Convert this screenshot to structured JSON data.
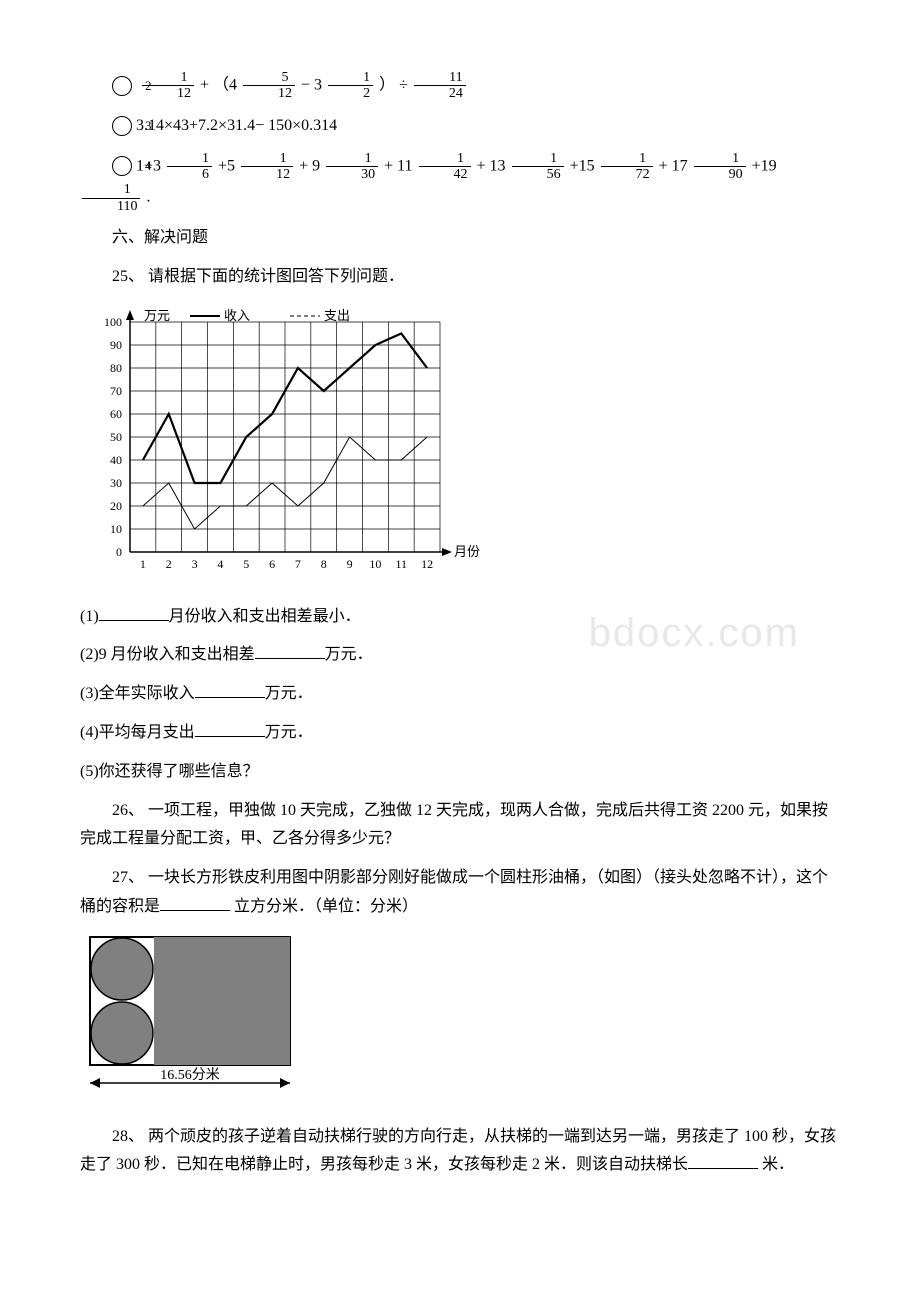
{
  "q2": {
    "prefix": "②",
    "text_mid": " + （4 ",
    "text_mid2": " − 3",
    "text_end": "） ÷ "
  },
  "q3": {
    "prefix": "③",
    "expr": "3.14×43+7.2×31.4− 150×0.314"
  },
  "q4": {
    "prefix": "④",
    "t1": "1+3 ",
    "t2": "+5 ",
    "t3": " + 9",
    "t4": " + 11",
    "t5": " + 13",
    "t6": "+15",
    "t7": " + 17",
    "t8": "+19",
    "tend": "."
  },
  "sec6": "六、解决问题",
  "q25": {
    "title": "25、 请根据下面的统计图回答下列问题．",
    "p1_a": "(1)",
    "p1_b": "月份收入和支出相差最小．",
    "p2_a": "(2)9 月份收入和支出相差",
    "p2_b": "万元．",
    "p3_a": "(3)全年实际收入",
    "p3_b": "万元．",
    "p4_a": "(4)平均每月支出",
    "p4_b": "万元．",
    "p5": "(5)你还获得了哪些信息？"
  },
  "q26": "26、 一项工程，甲独做 10 天完成，乙独做 12 天完成，现两人合做，完成后共得工资 2200 元，如果按完成工程量分配工资，甲、乙各分得多少元？",
  "q27_a": "27、 一块长方形铁皮利用图中阴影部分刚好能做成一个圆柱形油桶，（如图）（接头处忽略不计），这个桶的容积是",
  "q27_b": " 立方分米．（单位：分米）",
  "q28_a": "28、 两个顽皮的孩子逆着自动扶梯行驶的方向行走，从扶梯的一端到达另一端，男孩走了 100 秒，女孩走了 300 秒．已知在电梯静止时，男孩每秒走 3 米，女孩每秒走 2 米．则该自动扶梯长",
  "q28_b": " 米．",
  "watermark": "bdocx.com",
  "chart": {
    "y_label": "万元",
    "x_label": "月份",
    "legend_income": "收入",
    "legend_expense": "支出",
    "y_ticks": [
      0,
      10,
      20,
      30,
      40,
      50,
      60,
      70,
      80,
      90,
      100
    ],
    "x_ticks": [
      1,
      2,
      3,
      4,
      5,
      6,
      7,
      8,
      9,
      10,
      11,
      12
    ],
    "income": [
      40,
      60,
      30,
      30,
      50,
      60,
      80,
      70,
      80,
      90,
      95,
      80
    ],
    "expense": [
      20,
      30,
      10,
      20,
      20,
      30,
      20,
      30,
      50,
      40,
      40,
      50
    ],
    "grid_color": "#000000",
    "bg_color": "#ffffff"
  },
  "cylinder": {
    "caption": "16.56分米",
    "fill": "#808080",
    "width_ratio": 0.32
  }
}
